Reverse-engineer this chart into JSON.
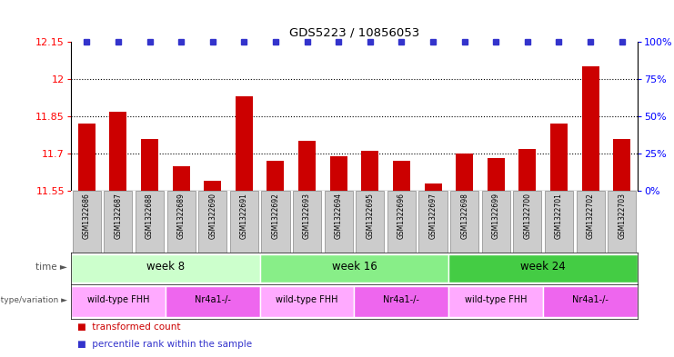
{
  "title": "GDS5223 / 10856053",
  "samples": [
    "GSM1322686",
    "GSM1322687",
    "GSM1322688",
    "GSM1322689",
    "GSM1322690",
    "GSM1322691",
    "GSM1322692",
    "GSM1322693",
    "GSM1322694",
    "GSM1322695",
    "GSM1322696",
    "GSM1322697",
    "GSM1322698",
    "GSM1322699",
    "GSM1322700",
    "GSM1322701",
    "GSM1322702",
    "GSM1322703"
  ],
  "bar_values": [
    11.82,
    11.87,
    11.76,
    11.65,
    11.59,
    11.93,
    11.67,
    11.75,
    11.69,
    11.71,
    11.67,
    11.58,
    11.7,
    11.68,
    11.72,
    11.82,
    12.05,
    11.76
  ],
  "percentile_values": [
    100,
    100,
    100,
    100,
    100,
    100,
    100,
    100,
    100,
    100,
    100,
    100,
    100,
    100,
    100,
    100,
    100,
    100
  ],
  "ylim_left": [
    11.55,
    12.15
  ],
  "ylim_right": [
    0,
    100
  ],
  "yticks_left": [
    11.55,
    11.7,
    11.85,
    12.0,
    12.15
  ],
  "yticks_right": [
    0,
    25,
    50,
    75,
    100
  ],
  "hlines": [
    11.7,
    11.85,
    12.0
  ],
  "bar_color": "#cc0000",
  "dot_color": "#3333cc",
  "bar_width": 0.55,
  "time_blocks": [
    {
      "label": "week 8",
      "start": 0,
      "end": 6,
      "color": "#ccffcc"
    },
    {
      "label": "week 16",
      "start": 6,
      "end": 12,
      "color": "#88ee88"
    },
    {
      "label": "week 24",
      "start": 12,
      "end": 18,
      "color": "#44cc44"
    }
  ],
  "genotype_blocks": [
    {
      "label": "wild-type FHH",
      "start": 0,
      "end": 3,
      "color": "#ffaaff"
    },
    {
      "label": "Nr4a1-/-",
      "start": 3,
      "end": 6,
      "color": "#ee66ee"
    },
    {
      "label": "wild-type FHH",
      "start": 6,
      "end": 9,
      "color": "#ffaaff"
    },
    {
      "label": "Nr4a1-/-",
      "start": 9,
      "end": 12,
      "color": "#ee66ee"
    },
    {
      "label": "wild-type FHH",
      "start": 12,
      "end": 15,
      "color": "#ffaaff"
    },
    {
      "label": "Nr4a1-/-",
      "start": 15,
      "end": 18,
      "color": "#ee66ee"
    }
  ],
  "legend_items": [
    {
      "label": "transformed count",
      "color": "#cc0000",
      "marker": "s"
    },
    {
      "label": "percentile rank within the sample",
      "color": "#3333cc",
      "marker": "s"
    }
  ],
  "sample_box_color": "#cccccc",
  "sample_box_edge": "#888888",
  "fig_bg": "#ffffff"
}
